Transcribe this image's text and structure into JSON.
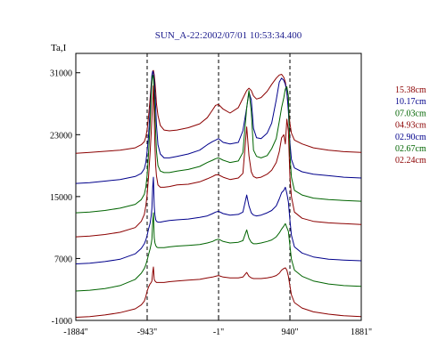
{
  "chart_data": {
    "type": "line",
    "title": "SUN_A-22:2002/07/01 10:53:34.400",
    "ylabel": "Ta,I",
    "xlabel": "",
    "xlim": [
      -1884,
      1881
    ],
    "ylim": [
      -1000,
      33500
    ],
    "x_tick_labels": [
      {
        "value": -1884,
        "label": "-1884\""
      },
      {
        "value": -943,
        "label": "-943\""
      },
      {
        "value": -1,
        "label": "-1\""
      },
      {
        "value": 940,
        "label": "940\""
      },
      {
        "value": 1881,
        "label": "1881\""
      }
    ],
    "y_tick_labels": [
      {
        "value": 31000,
        "label": "31000"
      },
      {
        "value": 23000,
        "label": "23000"
      },
      {
        "value": 15000,
        "label": "15000"
      },
      {
        "value": 7000,
        "label": "7000"
      },
      {
        "value": -1000,
        "label": "-1000"
      }
    ],
    "dashed_vlines": [
      -943,
      -1,
      940
    ],
    "x": [
      -1884,
      -1700,
      -1500,
      -1300,
      -1100,
      -1020,
      -980,
      -960,
      -943,
      -925,
      -905,
      -890,
      -880,
      -870,
      -860,
      -850,
      -840,
      -830,
      -820,
      -800,
      -770,
      -720,
      -650,
      -550,
      -400,
      -250,
      -150,
      -80,
      -40,
      -1,
      60,
      150,
      260,
      320,
      370,
      400,
      430,
      460,
      500,
      560,
      640,
      700,
      760,
      800,
      830,
      860,
      880,
      900,
      920,
      940,
      960,
      1000,
      1100,
      1250,
      1450,
      1650,
      1881
    ],
    "series": [
      {
        "name": "15.38cm",
        "color": "#8b0000",
        "y": [
          20600,
          20700,
          20850,
          21000,
          21300,
          21700,
          22100,
          22700,
          23700,
          25300,
          27500,
          29500,
          30500,
          31200,
          31300,
          30700,
          29800,
          28500,
          27000,
          25500,
          24200,
          23600,
          23500,
          23600,
          23900,
          24400,
          25200,
          26200,
          26800,
          26900,
          26300,
          25800,
          26500,
          27700,
          28700,
          29000,
          28700,
          28000,
          27600,
          27800,
          28600,
          29500,
          30300,
          30700,
          30800,
          30400,
          29800,
          28500,
          26500,
          24500,
          23200,
          22300,
          21800,
          21300,
          21000,
          20800,
          20700
        ]
      },
      {
        "name": "10.17cm",
        "color": "#00008b",
        "y": [
          16700,
          16800,
          17000,
          17200,
          17600,
          18000,
          18600,
          19400,
          20900,
          22800,
          26000,
          29000,
          30700,
          31200,
          31000,
          30000,
          28300,
          26400,
          24300,
          21700,
          20500,
          20000,
          20000,
          20200,
          20500,
          21000,
          21700,
          22100,
          22300,
          22500,
          22000,
          21800,
          22000,
          23500,
          26500,
          28500,
          27500,
          23800,
          22600,
          22500,
          23200,
          24500,
          27500,
          29800,
          30300,
          30000,
          29500,
          28500,
          26000,
          22000,
          19800,
          18700,
          18200,
          17900,
          17700,
          17500,
          17400
        ]
      },
      {
        "name": "07.03cm",
        "color": "#006400",
        "y": [
          12900,
          13000,
          13200,
          13500,
          14000,
          14600,
          15300,
          16200,
          17800,
          20500,
          24200,
          28000,
          29900,
          30700,
          30400,
          28500,
          25600,
          23200,
          20900,
          19000,
          18300,
          18100,
          18100,
          18300,
          18500,
          18900,
          19400,
          19700,
          19900,
          20000,
          19700,
          19400,
          19600,
          20700,
          26500,
          28700,
          26000,
          21000,
          20200,
          20000,
          20300,
          21200,
          22500,
          24700,
          26500,
          27800,
          28900,
          29200,
          28000,
          20500,
          17500,
          15800,
          15200,
          14800,
          14600,
          14500,
          14400
        ]
      },
      {
        "name": "04.93cm",
        "color": "#8b0000",
        "y": [
          9800,
          9900,
          10100,
          10400,
          11000,
          11800,
          12700,
          13800,
          15300,
          17500,
          20500,
          23200,
          25200,
          27300,
          29300,
          25300,
          21500,
          18900,
          17700,
          16500,
          16200,
          16200,
          16300,
          16500,
          16600,
          16900,
          17300,
          17600,
          17800,
          17800,
          17500,
          17200,
          17400,
          18000,
          24000,
          20300,
          18200,
          17600,
          17400,
          17500,
          17900,
          18400,
          19400,
          20800,
          22600,
          23000,
          21800,
          25000,
          23500,
          17600,
          15000,
          13000,
          12200,
          11800,
          11600,
          11500,
          11400
        ]
      },
      {
        "name": "02.90cm",
        "color": "#00008b",
        "y": [
          6300,
          6400,
          6600,
          6900,
          7600,
          8300,
          8900,
          9400,
          10000,
          10800,
          11500,
          12500,
          13500,
          16200,
          17500,
          13800,
          12600,
          12000,
          11800,
          11700,
          11700,
          11800,
          11900,
          12000,
          12100,
          12300,
          12500,
          12800,
          13000,
          13100,
          12800,
          12600,
          12700,
          13000,
          15200,
          13800,
          12900,
          12600,
          12500,
          12600,
          12900,
          13200,
          13800,
          14700,
          15500,
          15800,
          16200,
          15400,
          14300,
          12000,
          10000,
          8500,
          7700,
          7200,
          6900,
          6800,
          6700
        ]
      },
      {
        "name": "02.67cm",
        "color": "#006400",
        "y": [
          2800,
          2900,
          3100,
          3500,
          4300,
          5100,
          5700,
          6200,
          6800,
          7500,
          8200,
          8900,
          9500,
          11700,
          12900,
          9700,
          9000,
          8700,
          8500,
          8400,
          8400,
          8400,
          8500,
          8600,
          8700,
          8800,
          9000,
          9200,
          9400,
          9500,
          9200,
          9000,
          9100,
          9300,
          10700,
          9600,
          9100,
          8900,
          8900,
          9000,
          9200,
          9400,
          9800,
          10300,
          10800,
          11200,
          11500,
          11000,
          10500,
          8700,
          6900,
          5500,
          4700,
          4100,
          3700,
          3500,
          3400
        ]
      },
      {
        "name": "02.24cm",
        "color": "#8b0000",
        "y": [
          -600,
          -500,
          -300,
          0,
          500,
          1000,
          1500,
          2100,
          2800,
          3300,
          3700,
          3900,
          4100,
          5200,
          5900,
          4300,
          4100,
          4000,
          3900,
          3900,
          3900,
          3900,
          4000,
          4100,
          4200,
          4300,
          4500,
          4600,
          4700,
          4800,
          4600,
          4500,
          4500,
          4600,
          5200,
          4700,
          4500,
          4400,
          4400,
          4400,
          4500,
          4600,
          4800,
          5100,
          5500,
          5700,
          5800,
          5500,
          4700,
          3500,
          2300,
          1300,
          600,
          100,
          -200,
          -400,
          -500
        ]
      }
    ]
  }
}
